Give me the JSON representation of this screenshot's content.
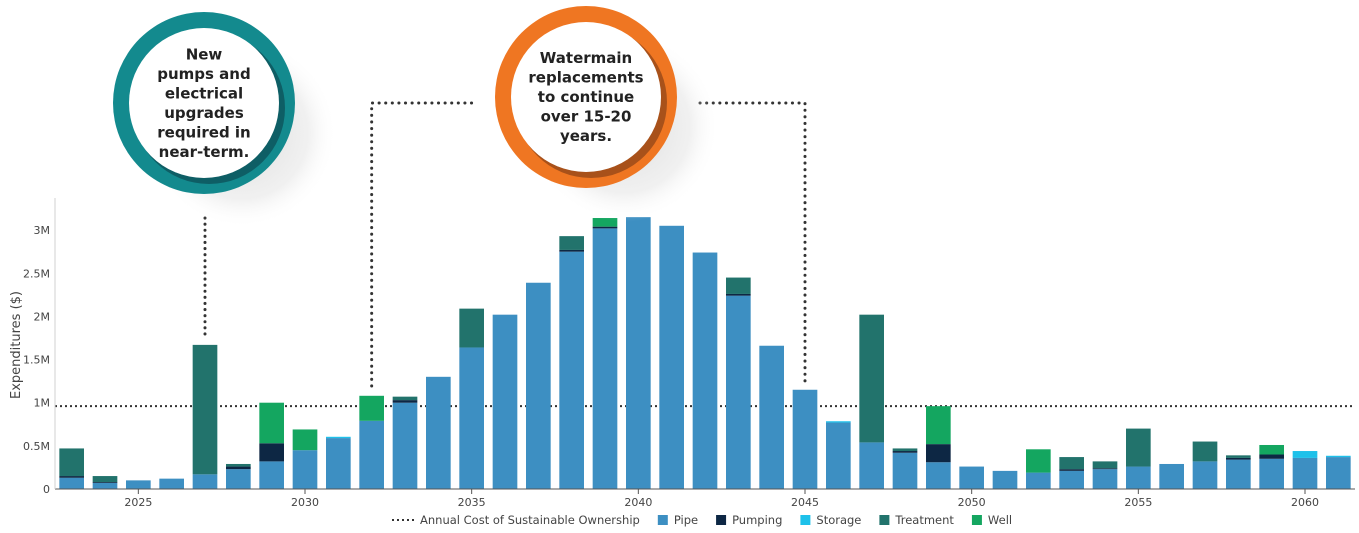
{
  "chart_data": {
    "type": "bar",
    "stacked": true,
    "x": [
      2023,
      2024,
      2025,
      2026,
      2027,
      2028,
      2029,
      2030,
      2031,
      2032,
      2033,
      2034,
      2035,
      2036,
      2037,
      2038,
      2039,
      2040,
      2041,
      2042,
      2043,
      2044,
      2045,
      2046,
      2047,
      2048,
      2049,
      2050,
      2051,
      2052,
      2053,
      2054,
      2055,
      2056,
      2057,
      2058,
      2059,
      2060,
      2061
    ],
    "x_ticks": [
      2025,
      2030,
      2035,
      2040,
      2045,
      2050,
      2055,
      2060
    ],
    "ylabel": "Expenditures ($)",
    "ylim": [
      0,
      3300000
    ],
    "y_ticks": [
      0,
      500000,
      1000000,
      1500000,
      2000000,
      2500000,
      3000000
    ],
    "y_tick_labels": [
      "0",
      "0.5M",
      "1M",
      "1.5M",
      "2M",
      "2.5M",
      "3M"
    ],
    "series": [
      {
        "name": "Pipe",
        "color": "#3d8fc2",
        "values": [
          130000,
          70000,
          100000,
          120000,
          170000,
          230000,
          320000,
          450000,
          590000,
          790000,
          1000000,
          1300000,
          1640000,
          2020000,
          2390000,
          2750000,
          3020000,
          3150000,
          3050000,
          2740000,
          2240000,
          1660000,
          1150000,
          770000,
          540000,
          420000,
          310000,
          260000,
          210000,
          190000,
          210000,
          230000,
          260000,
          290000,
          320000,
          340000,
          350000,
          360000,
          370000
        ]
      },
      {
        "name": "Pumping",
        "color": "#0d2744",
        "values": [
          20000,
          10000,
          0,
          0,
          0,
          30000,
          210000,
          0,
          0,
          0,
          30000,
          0,
          0,
          0,
          0,
          20000,
          20000,
          0,
          0,
          0,
          20000,
          0,
          0,
          0,
          0,
          20000,
          210000,
          0,
          0,
          0,
          20000,
          10000,
          0,
          0,
          0,
          20000,
          50000,
          0,
          0
        ]
      },
      {
        "name": "Storage",
        "color": "#1ec1ea",
        "values": [
          0,
          0,
          0,
          0,
          0,
          0,
          0,
          0,
          15000,
          0,
          0,
          0,
          0,
          0,
          0,
          0,
          0,
          0,
          0,
          0,
          0,
          0,
          0,
          15000,
          0,
          0,
          0,
          0,
          0,
          0,
          0,
          0,
          0,
          0,
          0,
          0,
          0,
          80000,
          15000
        ]
      },
      {
        "name": "Treatment",
        "color": "#22736c",
        "values": [
          320000,
          70000,
          0,
          0,
          1500000,
          30000,
          0,
          0,
          0,
          0,
          40000,
          0,
          450000,
          0,
          0,
          160000,
          0,
          0,
          0,
          0,
          190000,
          0,
          0,
          0,
          1480000,
          30000,
          0,
          0,
          0,
          0,
          140000,
          80000,
          440000,
          0,
          230000,
          30000,
          0,
          0,
          0
        ]
      },
      {
        "name": "Well",
        "color": "#14a660",
        "values": [
          0,
          0,
          0,
          0,
          0,
          0,
          470000,
          240000,
          0,
          290000,
          0,
          0,
          0,
          0,
          0,
          0,
          100000,
          0,
          0,
          0,
          0,
          0,
          0,
          0,
          0,
          0,
          440000,
          0,
          0,
          270000,
          0,
          0,
          0,
          0,
          0,
          0,
          110000,
          0,
          0
        ]
      }
    ],
    "reference_line": {
      "name": "Annual Cost of Sustainable Ownership",
      "value": 960000,
      "style": "dotted",
      "color": "#333333"
    },
    "annotations": [
      {
        "text_lines": [
          "New",
          "pumps and",
          "electrical",
          "upgrades",
          "required in",
          "near-term."
        ],
        "ring_color": "#138a8e",
        "shadow_color": "#0e5e65",
        "points_to_year": 2027
      },
      {
        "text_lines": [
          "Watermain",
          "replacements",
          "to continue",
          "over 15-20",
          "years."
        ],
        "ring_color": "#ef7622",
        "shadow_color": "#a8511a",
        "bracket_years": [
          2032,
          2045
        ]
      }
    ],
    "legend_position": "bottom-center",
    "grid": false
  }
}
